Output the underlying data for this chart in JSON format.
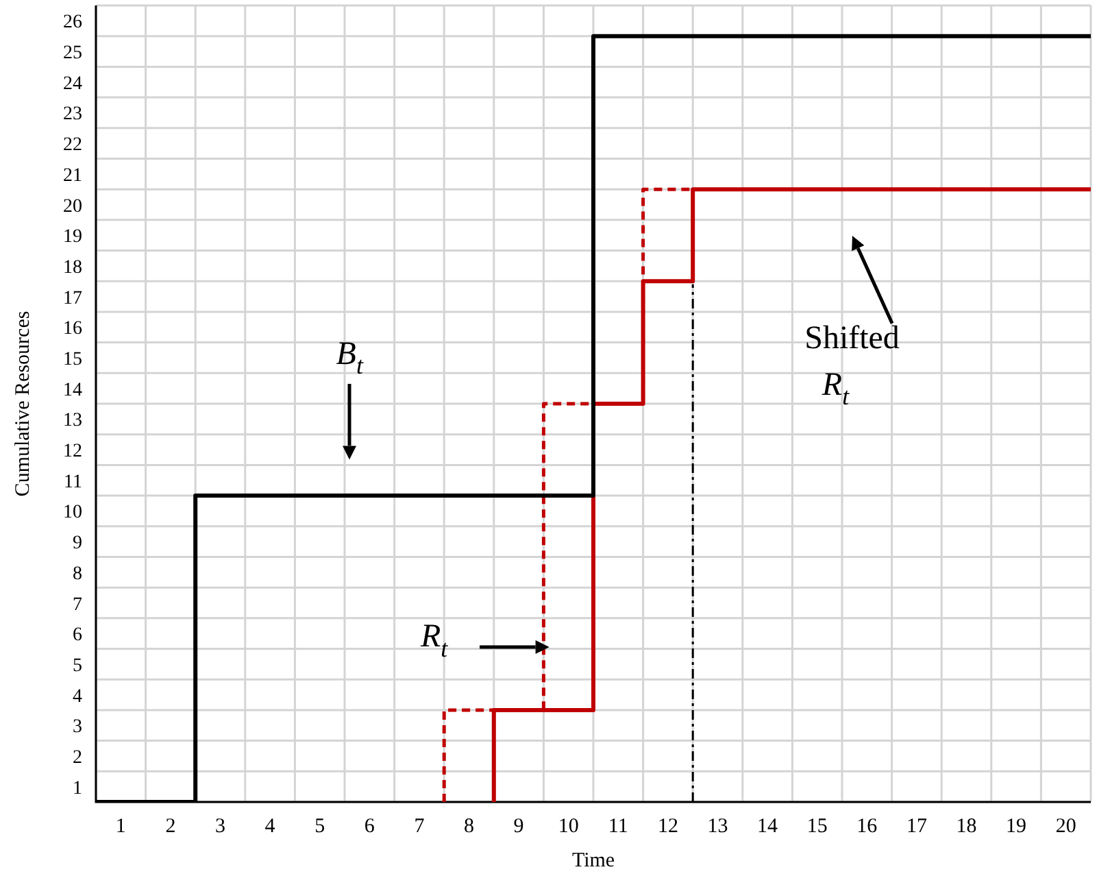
{
  "chart_data": {
    "type": "step",
    "xlabel": "Time",
    "ylabel": "Cumulative Resources",
    "xlim": [
      0.5,
      20.5
    ],
    "ylim": [
      1,
      27
    ],
    "xticks": [
      1,
      2,
      3,
      4,
      5,
      6,
      7,
      8,
      9,
      10,
      11,
      12,
      13,
      14,
      15,
      16,
      17,
      18,
      19,
      20
    ],
    "yticks": [
      1,
      2,
      3,
      4,
      5,
      6,
      7,
      8,
      9,
      10,
      11,
      12,
      13,
      14,
      15,
      16,
      17,
      18,
      19,
      20,
      21,
      22,
      23,
      24,
      25,
      26
    ],
    "grid": true,
    "legend": false,
    "marker": "none",
    "series": [
      {
        "color": "#000000",
        "line_style": "solid",
        "x": [
          0.5,
          2.5,
          10.5,
          20.5
        ],
        "values": [
          1,
          11,
          26,
          26
        ]
      },
      {
        "color": "#c00000",
        "line_style": "dashed",
        "x": [
          7.5,
          7.5,
          9.5,
          11.5,
          12.5
        ],
        "values": [
          1,
          4,
          14,
          21,
          21
        ]
      },
      {
        "color": "#c00000",
        "line_style": "solid",
        "x": [
          8.5,
          8.5,
          10.5,
          11.5,
          12.5,
          20.5
        ],
        "values": [
          1,
          4,
          14,
          18,
          21,
          21
        ]
      }
    ],
    "ref_lines": [
      {
        "axis": "x",
        "value": 12.5,
        "color": "#000000",
        "line_style": "dashed"
      }
    ],
    "annotations": [
      "B$_{t}$",
      "R$_{t}$",
      "Shifted\nR$_{t}$"
    ]
  }
}
